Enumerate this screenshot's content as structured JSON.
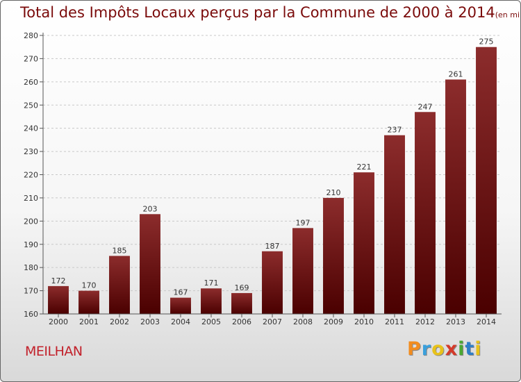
{
  "chart_data": {
    "type": "bar",
    "title": "Total des Impôts Locaux perçus par la Commune de 2000 à 2014",
    "unit": "(en milliers d'€)",
    "categories": [
      "2000",
      "2001",
      "2002",
      "2003",
      "2004",
      "2005",
      "2006",
      "2007",
      "2008",
      "2009",
      "2010",
      "2011",
      "2012",
      "2013",
      "2014"
    ],
    "values": [
      172,
      170,
      185,
      203,
      167,
      171,
      169,
      187,
      197,
      210,
      221,
      237,
      247,
      261,
      275
    ],
    "yticks": [
      160,
      170,
      180,
      190,
      200,
      210,
      220,
      230,
      240,
      250,
      260,
      270,
      280
    ],
    "ylim": [
      160,
      280
    ],
    "grid": "horizontal dashed",
    "bar_color": "#7a1a1a"
  },
  "commune": "MEILHAN",
  "logo": {
    "text": "Proxiti",
    "letters": [
      "P",
      "r",
      "o",
      "x",
      "i",
      "t",
      "i"
    ],
    "colors": [
      "#f28c1e",
      "#3aa0dc",
      "#e8c21a",
      "#d43a2a",
      "#4aa832",
      "#2e7fc8",
      "#e8c21a"
    ]
  }
}
